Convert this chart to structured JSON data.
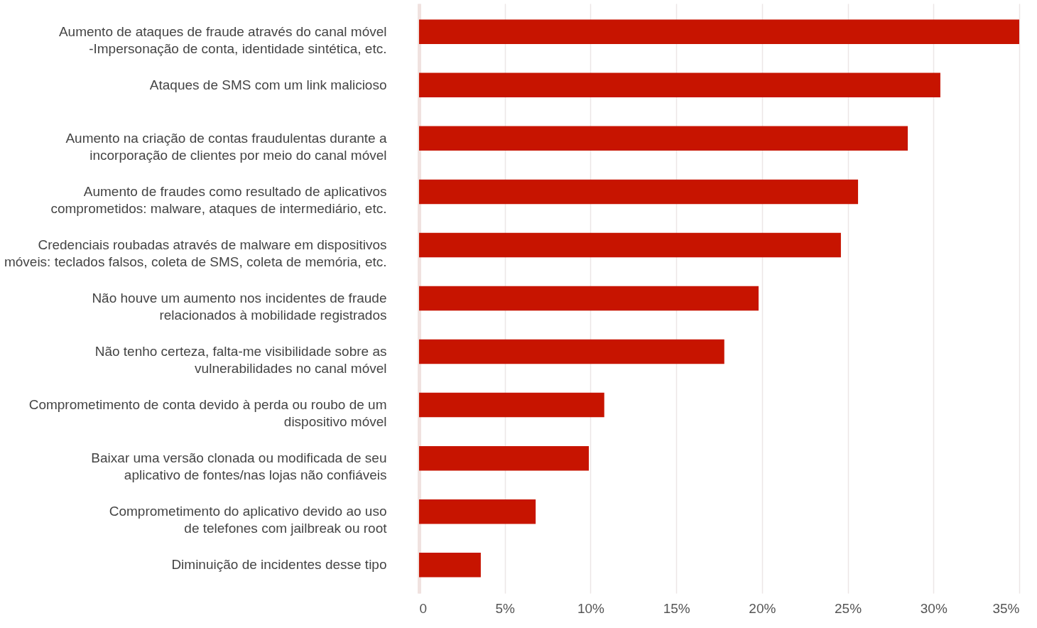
{
  "chart_data": {
    "type": "bar",
    "orientation": "horizontal",
    "categories": [
      "Aumento de ataques de fraude através do canal móvel\n-Impersonação de conta, identidade sintética, etc.",
      "Ataques de SMS com um link malicioso",
      "Aumento na criação de contas fraudulentas durante a\nincorporação de clientes por meio do canal móvel",
      "Aumento de fraudes como resultado de aplicativos\ncomprometidos: malware, ataques de intermediário, etc.",
      "Credenciais roubadas através de malware em dispositivos\nmóveis: teclados falsos, coleta de SMS, coleta de memória, etc.",
      "Não houve um aumento nos incidentes de fraude\nrelacionados à mobilidade registrados",
      "Não tenho certeza, falta-me visibilidade sobre as\nvulnerabilidades no canal móvel",
      "Comprometimento de conta devido à perda ou roubo de um\ndispositivo móvel",
      "Baixar uma versão clonada ou modificada de seu\naplicativo de fontes/nas lojas não confiáveis",
      "Comprometimento do aplicativo devido ao uso\nde telefones com jailbreak ou root",
      "Diminuição de incidentes desse tipo"
    ],
    "values": [
      35,
      30.4,
      28.5,
      25.6,
      24.6,
      19.8,
      17.8,
      10.8,
      9.9,
      6.8,
      3.6
    ],
    "color": "#c71400",
    "xlim": [
      0,
      35
    ],
    "xticks": [
      0,
      {
        "value": 5,
        "label": "5%"
      },
      {
        "value": 10,
        "label": "10%"
      },
      {
        "value": 15,
        "label": "15%"
      },
      {
        "value": 20,
        "label": "20%"
      },
      {
        "value": 25,
        "label": "25%"
      },
      {
        "value": 30,
        "label": "30%"
      },
      {
        "value": 35,
        "label": "35%"
      }
    ],
    "grid": "x"
  }
}
